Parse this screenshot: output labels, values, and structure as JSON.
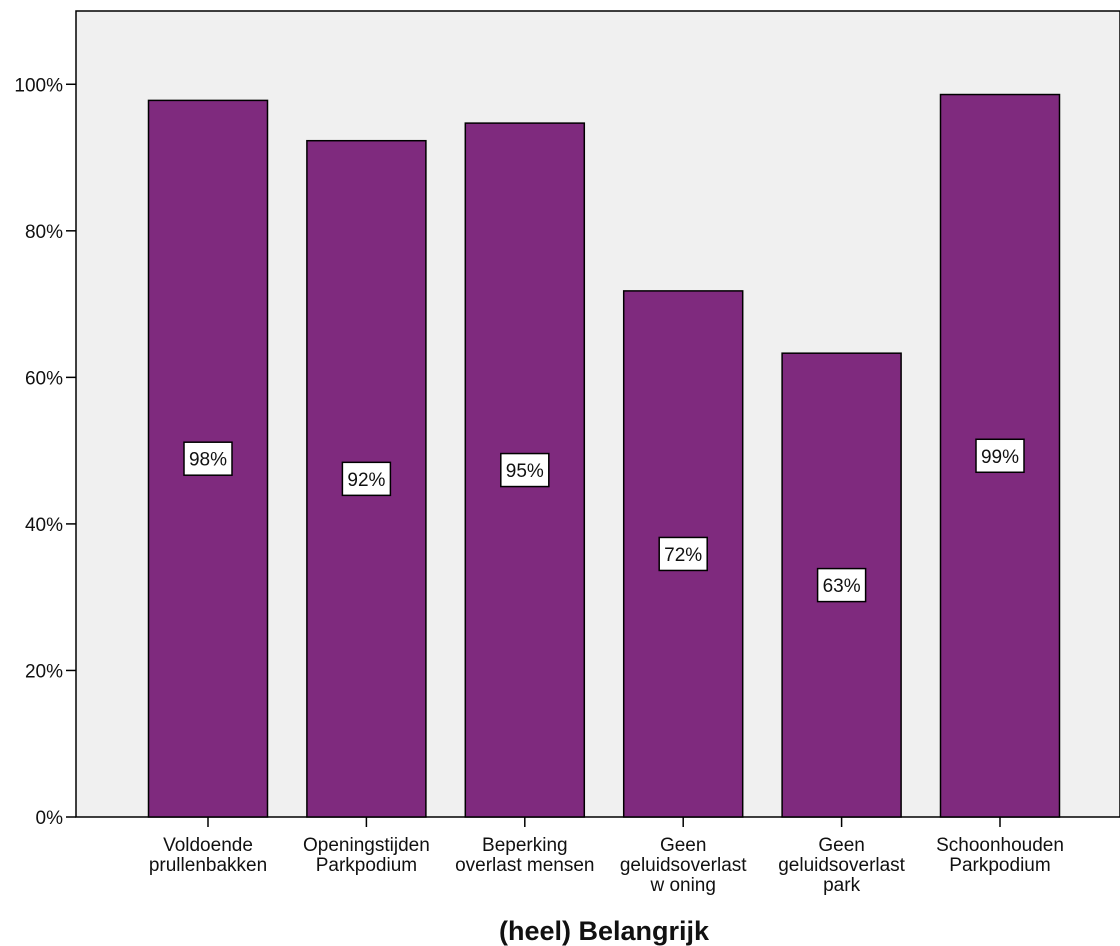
{
  "chart_data": {
    "type": "bar",
    "title": "",
    "xlabel": "(heel) Belangrijk",
    "ylabel": "",
    "ylim": [
      0,
      110
    ],
    "grid": false,
    "legend": "none",
    "yticks": [
      0,
      20,
      40,
      60,
      80,
      100
    ],
    "ytick_labels": [
      "0%",
      "20%",
      "40%",
      "60%",
      "80%",
      "100%"
    ],
    "categories": [
      [
        "Voldoende",
        "prullenbakken"
      ],
      [
        "Openingstijden",
        "Parkpodium"
      ],
      [
        "Beperking",
        "overlast mensen"
      ],
      [
        "Geen",
        "geluidsoverlast",
        "w oning"
      ],
      [
        "Geen",
        "geluidsoverlast",
        "park"
      ],
      [
        "Schoonhouden",
        "Parkpodium"
      ]
    ],
    "values": [
      97.8,
      92.3,
      94.7,
      71.8,
      63.3,
      98.6
    ],
    "data_labels": [
      "98%",
      "92%",
      "95%",
      "72%",
      "63%",
      "99%"
    ],
    "colors": {
      "bar": "#7f2a7e",
      "plot_background": "#f0f0f0",
      "axis": "#000000",
      "label_box": "#ffffff"
    }
  }
}
